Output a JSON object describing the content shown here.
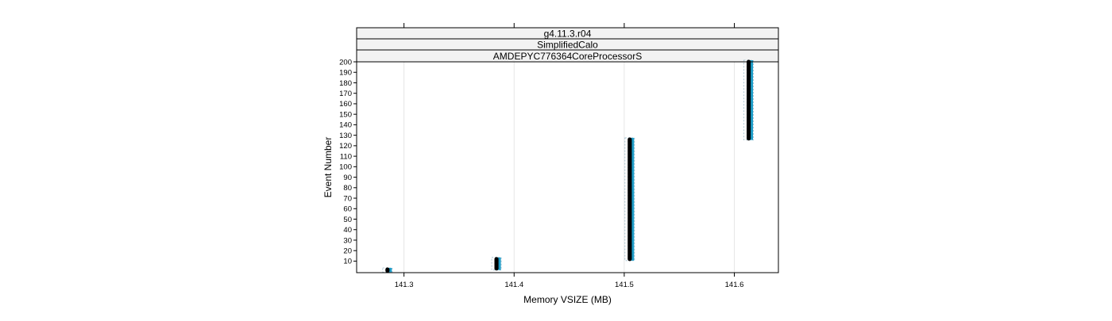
{
  "chart_data": {
    "type": "scatter",
    "title": "",
    "xlabel": "Memory VSIZE (MB)",
    "ylabel": "Event Number",
    "strips": [
      "g4.11.3.r04",
      "SimplifiedCalo",
      "AMDEPYC776364CoreProcessorS"
    ],
    "xlim": [
      141.257,
      141.64
    ],
    "ylim": [
      -1,
      200
    ],
    "x_ticks": [
      141.3,
      141.4,
      141.5,
      141.6
    ],
    "x_tick_labels": [
      "141.3",
      "141.4",
      "141.5",
      "141.6"
    ],
    "y_ticks": [
      10,
      20,
      30,
      40,
      50,
      60,
      70,
      80,
      90,
      100,
      110,
      120,
      130,
      140,
      150,
      160,
      170,
      180,
      190,
      200
    ],
    "grid": true,
    "series": [
      {
        "clusters": [
          {
            "x": 141.285,
            "y_from": 1,
            "y_to": 2
          },
          {
            "x": 141.384,
            "y_from": 3,
            "y_to": 12
          },
          {
            "x": 141.505,
            "y_from": 12,
            "y_to": 126
          },
          {
            "x": 141.613,
            "y_from": 127,
            "y_to": 200
          }
        ]
      }
    ],
    "colors": {
      "points": "#000000",
      "bands": "#1f9ec9",
      "grid": "#e6e6e6",
      "strip_bg": "#f2f2f2"
    }
  }
}
